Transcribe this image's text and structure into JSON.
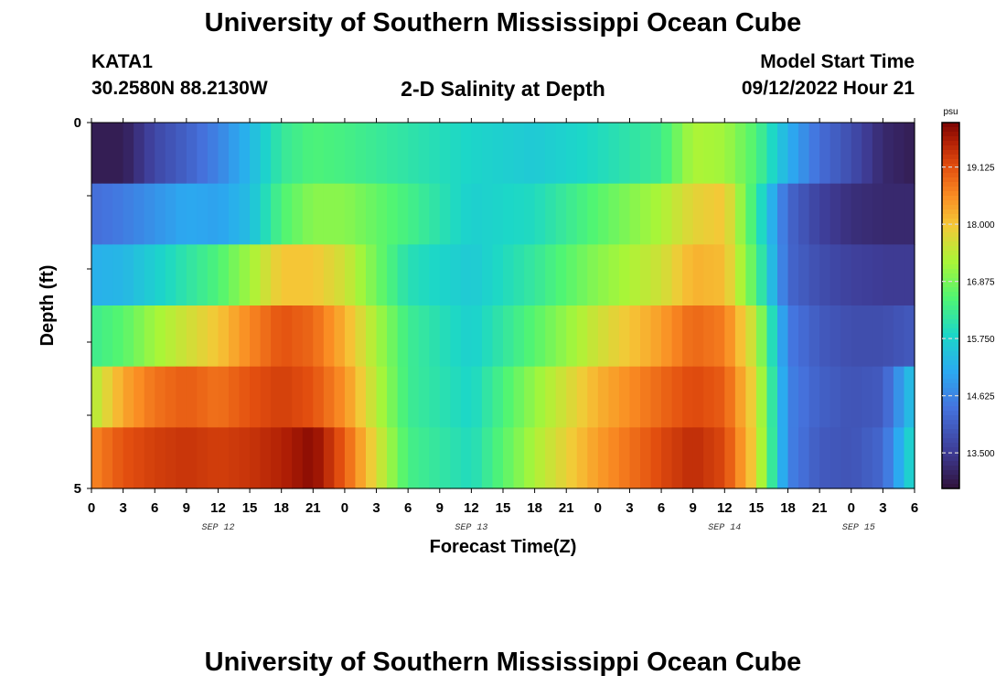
{
  "header": {
    "title": "University of Southern Mississippi Ocean Cube",
    "station": "KATA1",
    "coords": "30.2580N  88.2130W",
    "subtitle": "2-D Salinity at Depth",
    "start_label": "Model Start Time",
    "start_value": "09/12/2022 Hour 21"
  },
  "footer": {
    "title": "University of Southern Mississippi Ocean Cube"
  },
  "chart_data": {
    "type": "heatmap",
    "title": "2-D Salinity at Depth",
    "xlabel": "Forecast Time(Z)",
    "ylabel": "Depth (ft)",
    "y_tick_labels": [
      "0",
      "5"
    ],
    "ylim": [
      0,
      5
    ],
    "x_tick_labels": [
      "0",
      "3",
      "6",
      "9",
      "12",
      "15",
      "18",
      "21",
      "0",
      "3",
      "6",
      "9",
      "12",
      "15",
      "18",
      "21",
      "0",
      "3",
      "6",
      "9",
      "12",
      "15",
      "18",
      "21",
      "0",
      "3",
      "6"
    ],
    "date_labels": [
      "SEP 12",
      "SEP 13",
      "SEP 14",
      "SEP 15"
    ],
    "x_range_hours": [
      0,
      78
    ],
    "depth_layers_ft": [
      0,
      1,
      2,
      3,
      4,
      5
    ],
    "colorbar": {
      "units": "psu",
      "min": 12.8,
      "max": 20.0,
      "tick_values": [
        13.5,
        14.625,
        15.75,
        16.875,
        18.0,
        19.125
      ],
      "tick_labels": [
        "13.500",
        "14.625",
        "15.750",
        "16.875",
        "18.000",
        "19.125"
      ]
    },
    "series": [
      {
        "depth_ft": 0,
        "hours": [
          0,
          3,
          6,
          9,
          12,
          15,
          18,
          21,
          24,
          30,
          36,
          42,
          48,
          54,
          57,
          60,
          63,
          66,
          69,
          72,
          75,
          78
        ],
        "values": [
          13.0,
          13.0,
          13.7,
          14.1,
          14.6,
          15.3,
          16.2,
          16.5,
          16.4,
          16.1,
          15.8,
          15.6,
          15.9,
          16.3,
          17.3,
          17.2,
          16.5,
          15.2,
          14.3,
          13.8,
          13.2,
          13.0
        ]
      },
      {
        "depth_ft": 1,
        "hours": [
          0,
          3,
          6,
          9,
          12,
          15,
          18,
          21,
          24,
          30,
          36,
          42,
          48,
          54,
          57,
          60,
          63,
          66,
          69,
          72,
          75,
          78
        ],
        "values": [
          14.3,
          14.5,
          14.8,
          15.1,
          15.0,
          15.4,
          16.5,
          17.0,
          17.0,
          16.4,
          15.7,
          15.9,
          16.6,
          17.3,
          17.8,
          18.0,
          16.2,
          14.2,
          13.6,
          13.3,
          13.2,
          13.2
        ]
      },
      {
        "depth_ft": 2,
        "hours": [
          0,
          3,
          6,
          9,
          12,
          15,
          18,
          21,
          24,
          30,
          36,
          42,
          48,
          54,
          57,
          60,
          63,
          66,
          69,
          72,
          75,
          78
        ],
        "values": [
          15.2,
          15.3,
          15.7,
          16.1,
          16.5,
          17.2,
          18.0,
          18.0,
          17.6,
          16.0,
          15.6,
          16.2,
          17.0,
          17.6,
          18.2,
          18.1,
          16.5,
          14.2,
          13.8,
          13.6,
          13.5,
          13.5
        ]
      },
      {
        "depth_ft": 3,
        "hours": [
          0,
          3,
          6,
          9,
          12,
          15,
          18,
          21,
          24,
          30,
          36,
          42,
          48,
          54,
          57,
          60,
          63,
          66,
          69,
          72,
          75,
          78
        ],
        "values": [
          16.3,
          16.6,
          17.2,
          17.6,
          18.0,
          18.6,
          19.1,
          18.9,
          18.2,
          16.3,
          15.7,
          16.6,
          17.6,
          18.4,
          18.9,
          18.7,
          17.4,
          14.5,
          14.0,
          13.8,
          13.8,
          14.0
        ]
      },
      {
        "depth_ft": 4,
        "hours": [
          0,
          3,
          6,
          9,
          12,
          15,
          18,
          21,
          24,
          30,
          36,
          42,
          48,
          54,
          57,
          60,
          63,
          66,
          69,
          72,
          75,
          78
        ],
        "values": [
          17.3,
          18.3,
          18.8,
          19.0,
          18.8,
          19.1,
          19.3,
          19.1,
          18.5,
          16.3,
          15.8,
          17.1,
          18.2,
          18.9,
          19.2,
          19.0,
          17.7,
          14.6,
          14.1,
          13.9,
          14.0,
          15.6
        ]
      },
      {
        "depth_ft": 5,
        "hours": [
          0,
          3,
          6,
          9,
          12,
          15,
          18,
          21,
          24,
          30,
          36,
          42,
          48,
          54,
          57,
          60,
          63,
          66,
          69,
          72,
          75,
          78
        ],
        "values": [
          18.6,
          19.1,
          19.3,
          19.4,
          19.3,
          19.4,
          19.6,
          19.9,
          19.0,
          16.4,
          15.9,
          17.3,
          18.4,
          19.2,
          19.5,
          19.2,
          17.8,
          14.6,
          14.0,
          13.9,
          14.2,
          16.0
        ]
      }
    ]
  }
}
